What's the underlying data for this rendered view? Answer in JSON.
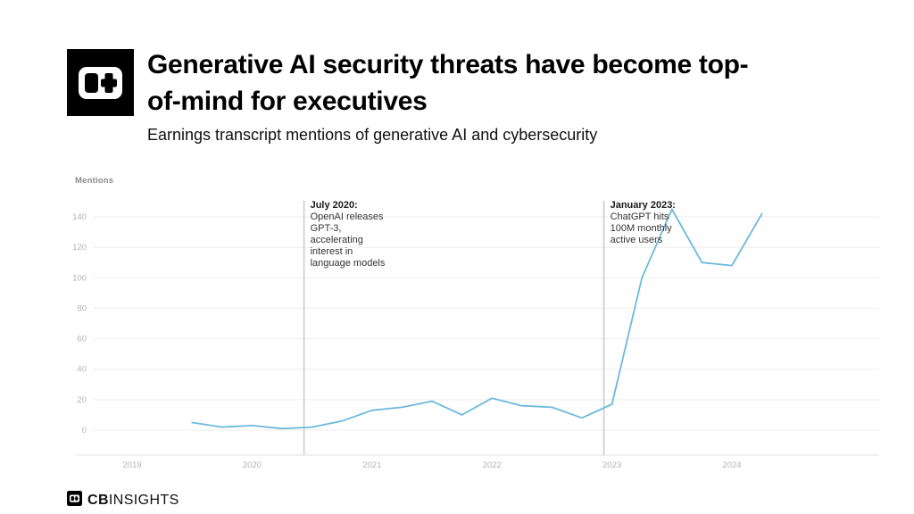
{
  "header": {
    "title": "Generative AI security threats have become top-of-mind for executives",
    "subtitle": "Earnings transcript mentions of generative AI and cybersecurity"
  },
  "footer": {
    "brand_cb": "CB",
    "brand_insights": "INSIGHTS"
  },
  "chart_data": {
    "type": "line",
    "title": "Earnings transcript mentions of generative AI and cybersecurity",
    "ylabel": "Mentions",
    "xlabel": "",
    "line_color": "#6cb9dc",
    "grid": true,
    "ylim": [
      0,
      150
    ],
    "x_ticks": [
      "2019",
      "2020",
      "2021",
      "2022",
      "2023",
      "2024"
    ],
    "y_ticks": [
      0,
      20,
      40,
      60,
      80,
      100,
      120,
      140
    ],
    "x": [
      2019.5,
      2019.75,
      2020.0,
      2020.25,
      2020.5,
      2020.75,
      2021.0,
      2021.25,
      2021.5,
      2021.75,
      2022.0,
      2022.25,
      2022.5,
      2022.75,
      2023.0,
      2023.25,
      2023.5,
      2023.75,
      2024.0,
      2024.25
    ],
    "values": [
      5,
      2,
      3,
      1,
      2,
      6,
      13,
      15,
      19,
      10,
      21,
      16,
      15,
      8,
      17,
      100,
      145,
      110,
      108,
      142
    ],
    "annotations": [
      {
        "x_year": 2020.5,
        "label": "July 2020:",
        "text": "OpenAI releases\nGPT-3,\naccelerating\ninterest in\nlanguage models"
      },
      {
        "x_year": 2023.0,
        "label": "January 2023:",
        "text": "ChatGPT hits\n100M monthly\nactive users"
      }
    ]
  }
}
